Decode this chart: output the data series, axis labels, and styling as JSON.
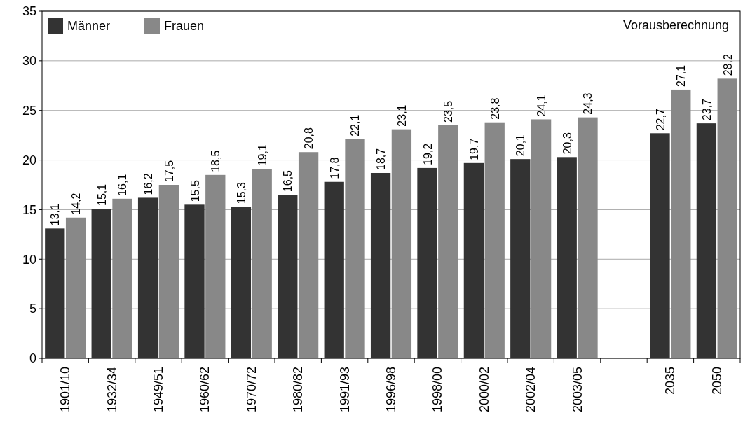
{
  "chart_data": {
    "type": "bar",
    "categories": [
      "1901/10",
      "1932/34",
      "1949/51",
      "1960/62",
      "1970/72",
      "1980/82",
      "1991/93",
      "1996/98",
      "1998/00",
      "2000/02",
      "2002/04",
      "2003/05",
      null,
      "2035",
      "2050"
    ],
    "series": [
      {
        "name": "Männer",
        "color": "#333333",
        "values": [
          13.1,
          15.1,
          16.2,
          15.5,
          15.3,
          16.5,
          17.8,
          18.7,
          19.2,
          19.7,
          20.1,
          20.3,
          null,
          22.7,
          23.7
        ],
        "value_labels": [
          "13,1",
          "15,1",
          "16,2",
          "15,5",
          "15,3",
          "16,5",
          "17,8",
          "18,7",
          "19,2",
          "19,7",
          "20,1",
          "20,3",
          null,
          "22,7",
          "23,7"
        ]
      },
      {
        "name": "Frauen",
        "color": "#888888",
        "values": [
          14.2,
          16.1,
          17.5,
          18.5,
          19.1,
          20.8,
          22.1,
          23.1,
          23.5,
          23.8,
          24.1,
          24.3,
          null,
          27.1,
          28.2
        ],
        "value_labels": [
          "14,2",
          "16,1",
          "17,5",
          "18,5",
          "19,1",
          "20,8",
          "22,1",
          "23,1",
          "23,5",
          "23,8",
          "24,1",
          "24,3",
          null,
          "27,1",
          "28,2"
        ]
      }
    ],
    "ylim": [
      0,
      35
    ],
    "yticks": [
      0,
      5,
      10,
      15,
      20,
      25,
      30,
      35
    ],
    "grid": "y",
    "legend": "top left",
    "annotations": [
      "Vorausberechnung"
    ]
  }
}
